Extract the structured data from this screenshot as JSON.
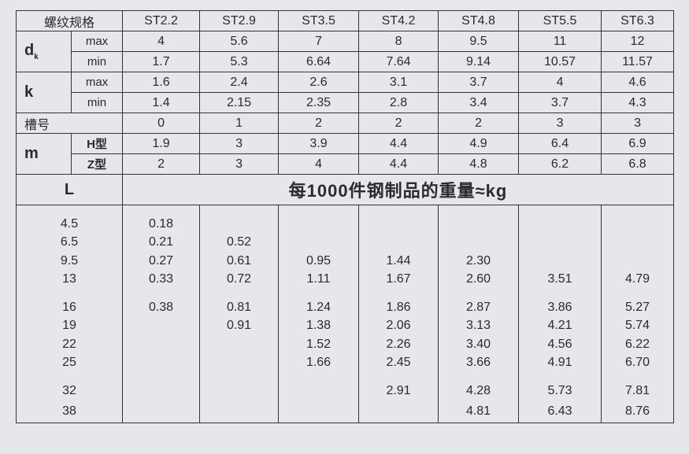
{
  "header": {
    "spec_label": "螺纹规格",
    "sizes": [
      "ST2.2",
      "ST2.9",
      "ST3.5",
      "ST4.2",
      "ST4.8",
      "ST5.5",
      "ST6.3"
    ]
  },
  "dims": {
    "dk": {
      "label": "d",
      "sub": "k",
      "max_label": "max",
      "min_label": "min",
      "max": [
        "4",
        "5.6",
        "7",
        "8",
        "9.5",
        "11",
        "12"
      ],
      "min": [
        "1.7",
        "5.3",
        "6.64",
        "7.64",
        "9.14",
        "10.57",
        "11.57"
      ]
    },
    "k": {
      "label": "k",
      "max_label": "max",
      "min_label": "min",
      "max": [
        "1.6",
        "2.4",
        "2.6",
        "3.1",
        "3.7",
        "4",
        "4.6"
      ],
      "min": [
        "1.4",
        "2.15",
        "2.35",
        "2.8",
        "3.4",
        "3.7",
        "4.3"
      ]
    },
    "slot": {
      "label": "槽号",
      "values": [
        "0",
        "1",
        "2",
        "2",
        "2",
        "3",
        "3"
      ]
    },
    "m": {
      "label": "m",
      "h_label": "H型",
      "z_label": "Z型",
      "h": [
        "1.9",
        "3",
        "3.9",
        "4.4",
        "4.9",
        "6.4",
        "6.9"
      ],
      "z": [
        "2",
        "3",
        "4",
        "4.4",
        "4.8",
        "6.2",
        "6.8"
      ]
    }
  },
  "weights": {
    "l_label": "L",
    "title": "每1000件钢制品的重量≈kg",
    "rows": [
      {
        "L": "4.5",
        "v": [
          "0.18",
          "",
          "",
          "",
          "",
          "",
          ""
        ]
      },
      {
        "L": "6.5",
        "v": [
          "0.21",
          "0.52",
          "",
          "",
          "",
          "",
          ""
        ]
      },
      {
        "L": "9.5",
        "v": [
          "0.27",
          "0.61",
          "0.95",
          "1.44",
          "2.30",
          "",
          ""
        ]
      },
      {
        "L": "13",
        "v": [
          "0.33",
          "0.72",
          "1.11",
          "1.67",
          "2.60",
          "3.51",
          "4.79"
        ]
      },
      {
        "L": "16",
        "v": [
          "0.38",
          "0.81",
          "1.24",
          "1.86",
          "2.87",
          "3.86",
          "5.27"
        ]
      },
      {
        "L": "19",
        "v": [
          "",
          "0.91",
          "1.38",
          "2.06",
          "3.13",
          "4.21",
          "5.74"
        ]
      },
      {
        "L": "22",
        "v": [
          "",
          "",
          "1.52",
          "2.26",
          "3.40",
          "4.56",
          "6.22"
        ]
      },
      {
        "L": "25",
        "v": [
          "",
          "",
          "1.66",
          "2.45",
          "3.66",
          "4.91",
          "6.70"
        ]
      },
      {
        "L": "32",
        "v": [
          "",
          "",
          "",
          "2.91",
          "4.28",
          "5.73",
          "7.81"
        ]
      },
      {
        "L": "38",
        "v": [
          "",
          "",
          "",
          "",
          "4.81",
          "6.43",
          "8.76"
        ]
      }
    ]
  }
}
